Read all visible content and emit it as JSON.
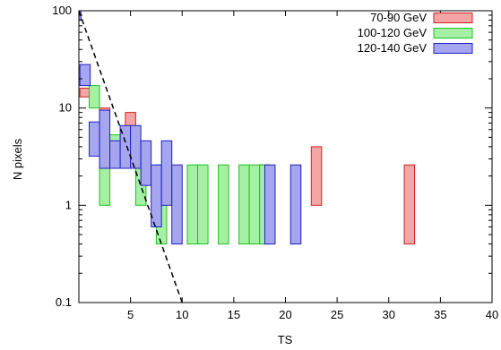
{
  "chart_data": {
    "type": "bar",
    "title": "",
    "xlabel": "TS",
    "ylabel": "N pixels",
    "x_scale": "linear",
    "y_scale": "log",
    "xlim": [
      0,
      40
    ],
    "ylim": [
      0.1,
      100
    ],
    "x_ticks": [
      5,
      10,
      15,
      20,
      25,
      30,
      35,
      40
    ],
    "x_tick_labels": [
      "5",
      "10",
      "15",
      "20",
      "25",
      "30",
      "35",
      "40"
    ],
    "y_ticks": [
      0.1,
      1,
      10,
      100
    ],
    "y_tick_labels": [
      "0.1",
      "1",
      "10",
      "100"
    ],
    "grid": false,
    "legend_position": "top-right",
    "series": [
      {
        "name": "70-90 GeV",
        "fill": "#f4a6a6",
        "stroke": "#d02020",
        "boxes": [
          {
            "x0": 0.1,
            "x1": 1.0,
            "ylo": 13,
            "yhi": 16
          },
          {
            "x0": 2.0,
            "x1": 3.0,
            "ylo": 7.5,
            "yhi": 10
          },
          {
            "x0": 4.5,
            "x1": 5.5,
            "ylo": 4.0,
            "yhi": 9
          },
          {
            "x0": 17.5,
            "x1": 18.5,
            "ylo": 0.4,
            "yhi": 2.6
          },
          {
            "x0": 22.5,
            "x1": 23.5,
            "ylo": 1.0,
            "yhi": 4.0
          },
          {
            "x0": 31.5,
            "x1": 32.5,
            "ylo": 0.4,
            "yhi": 2.6
          }
        ]
      },
      {
        "name": "100-120 GeV",
        "fill": "#a6f0a6",
        "stroke": "#20c020",
        "boxes": [
          {
            "x0": 1.0,
            "x1": 2.0,
            "ylo": 10,
            "yhi": 17
          },
          {
            "x0": 2.0,
            "x1": 3.0,
            "ylo": 1.0,
            "yhi": 2.6
          },
          {
            "x0": 3.0,
            "x1": 4.0,
            "ylo": 2.6,
            "yhi": 5.3
          },
          {
            "x0": 5.5,
            "x1": 6.5,
            "ylo": 1.0,
            "yhi": 2.6
          },
          {
            "x0": 7.5,
            "x1": 8.5,
            "ylo": 0.4,
            "yhi": 2.6
          },
          {
            "x0": 10.5,
            "x1": 11.5,
            "ylo": 0.4,
            "yhi": 2.6
          },
          {
            "x0": 11.5,
            "x1": 12.5,
            "ylo": 0.4,
            "yhi": 2.6
          },
          {
            "x0": 13.5,
            "x1": 14.5,
            "ylo": 0.4,
            "yhi": 2.6
          },
          {
            "x0": 15.5,
            "x1": 16.5,
            "ylo": 0.4,
            "yhi": 2.6
          },
          {
            "x0": 16.5,
            "x1": 17.5,
            "ylo": 0.4,
            "yhi": 2.6
          },
          {
            "x0": 17.5,
            "x1": 18.5,
            "ylo": 0.4,
            "yhi": 2.6
          }
        ]
      },
      {
        "name": "120-140 GeV",
        "fill": "#a6a6f0",
        "stroke": "#2020c0",
        "boxes": [
          {
            "x0": 0.0,
            "x1": 0.2,
            "ylo": 80,
            "yhi": 100
          },
          {
            "x0": 0.1,
            "x1": 1.1,
            "ylo": 17,
            "yhi": 28
          },
          {
            "x0": 1.0,
            "x1": 2.0,
            "ylo": 3.2,
            "yhi": 7.2
          },
          {
            "x0": 2.0,
            "x1": 3.0,
            "ylo": 2.4,
            "yhi": 9.5
          },
          {
            "x0": 3.0,
            "x1": 4.0,
            "ylo": 2.4,
            "yhi": 4.6
          },
          {
            "x0": 4.0,
            "x1": 5.0,
            "ylo": 2.4,
            "yhi": 6.6
          },
          {
            "x0": 5.0,
            "x1": 6.0,
            "ylo": 2.4,
            "yhi": 6.6
          },
          {
            "x0": 6.0,
            "x1": 7.0,
            "ylo": 1.6,
            "yhi": 4.6
          },
          {
            "x0": 7.0,
            "x1": 8.0,
            "ylo": 0.6,
            "yhi": 2.6
          },
          {
            "x0": 8.0,
            "x1": 9.0,
            "ylo": 1.0,
            "yhi": 4.6
          },
          {
            "x0": 9.0,
            "x1": 10.0,
            "ylo": 0.4,
            "yhi": 2.6
          },
          {
            "x0": 18.0,
            "x1": 19.0,
            "ylo": 0.4,
            "yhi": 2.6
          },
          {
            "x0": 20.5,
            "x1": 21.5,
            "ylo": 0.4,
            "yhi": 2.6
          }
        ]
      }
    ],
    "reference_line": {
      "style": "dashed",
      "color": "#000000",
      "points": [
        [
          0,
          100
        ],
        [
          10,
          0.1
        ]
      ]
    }
  }
}
